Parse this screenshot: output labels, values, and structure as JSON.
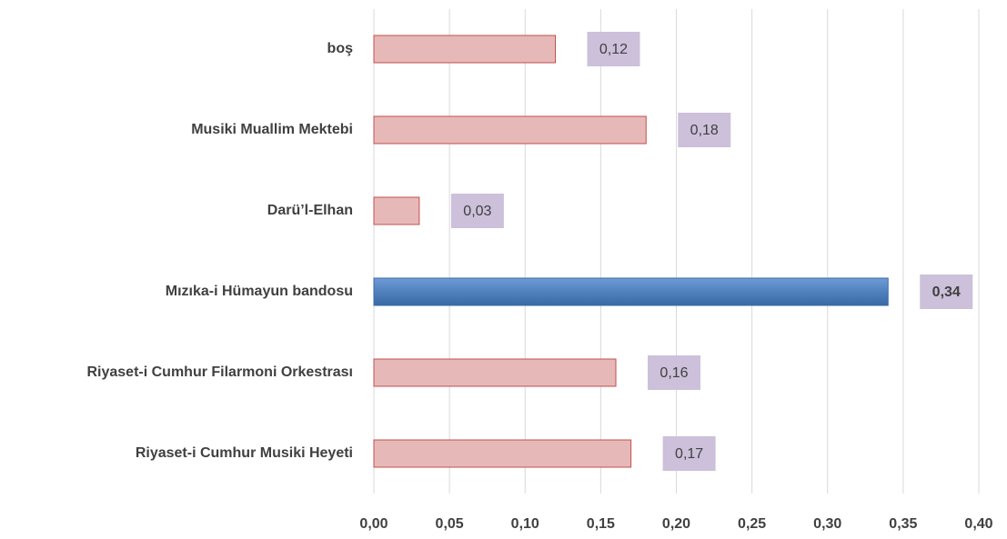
{
  "chart_data": {
    "type": "bar",
    "orientation": "horizontal",
    "categories": [
      "boş",
      "Musiki Muallim Mektebi",
      "Darü’l-Elhan",
      "Mızıka-i Hümayun bandosu",
      "Riyaset-i Cumhur Filarmoni Orkestrası",
      "Riyaset-i Cumhur Musiki Heyeti"
    ],
    "values": [
      0.12,
      0.18,
      0.03,
      0.34,
      0.16,
      0.17
    ],
    "value_labels": [
      "0,12",
      "0,18",
      "0,03",
      "0,34",
      "0,16",
      "0,17"
    ],
    "colors": [
      "#e6b9b8",
      "#e6b9b8",
      "#e6b9b8",
      "#4f81bd",
      "#e6b9b8",
      "#e6b9b8"
    ],
    "highlight": 3,
    "xlim": [
      0,
      0.4
    ],
    "xticks": [
      {
        "value": 0,
        "label": "0,00"
      },
      {
        "value": 0.05,
        "label": "0,05"
      },
      {
        "value": 0.1,
        "label": "0,10"
      },
      {
        "value": 0.15,
        "label": "0,15"
      },
      {
        "value": 0.2,
        "label": "0,20"
      },
      {
        "value": 0.25,
        "label": "0,25"
      },
      {
        "value": 0.3,
        "label": "0,30"
      },
      {
        "value": 0.35,
        "label": "0,35"
      },
      {
        "value": 0.4,
        "label": "0,40"
      }
    ],
    "grid": true
  }
}
